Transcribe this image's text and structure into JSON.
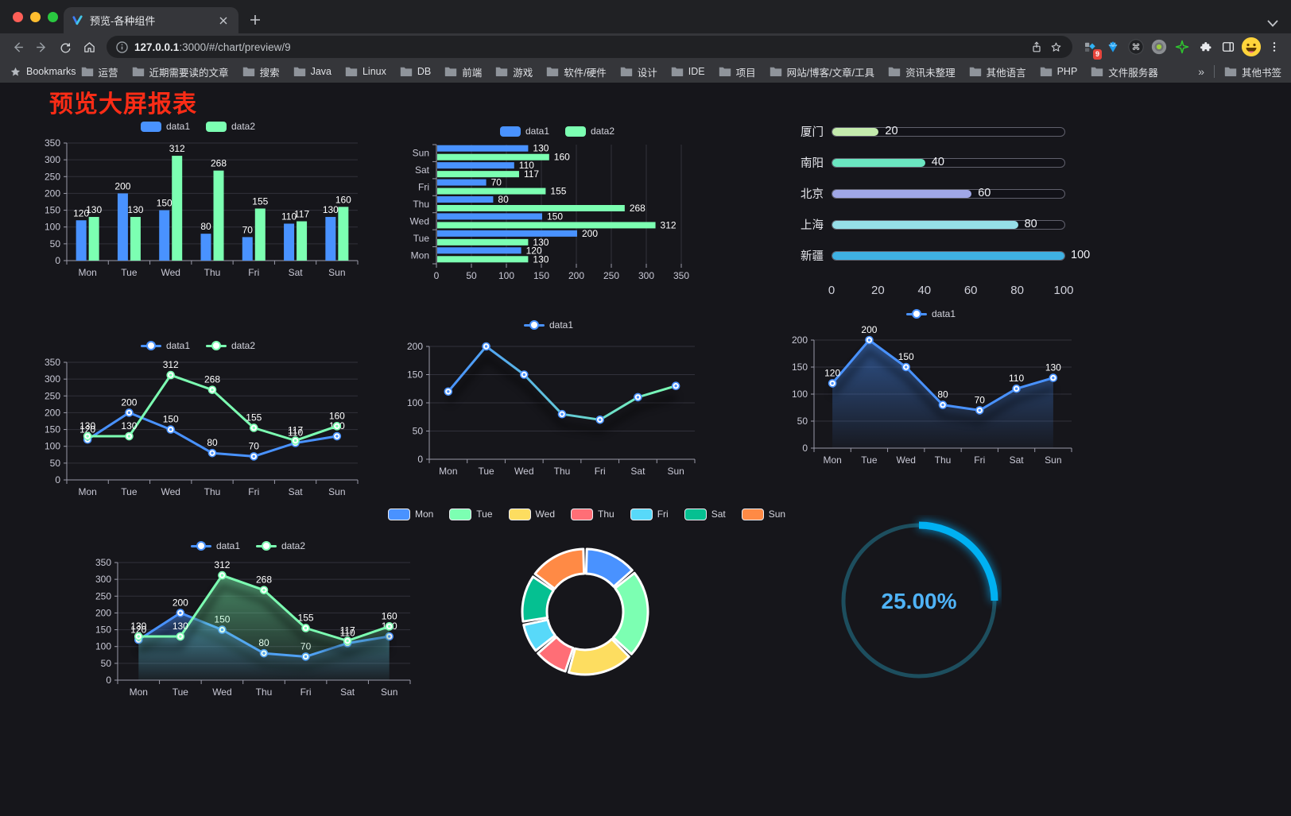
{
  "browser": {
    "tab_title": "预览-各种组件",
    "url_host": "127.0.0.1",
    "url_rest": ":3000/#/chart/preview/9",
    "bookmarks_label": "Bookmarks",
    "bookmark_folders": [
      "运营",
      "近期需要读的文章",
      "搜索",
      "Java",
      "Linux",
      "DB",
      "前端",
      "游戏",
      "软件/硬件",
      "设计",
      "IDE",
      "项目",
      "网站/博客/文章/工具",
      "资讯未整理",
      "其他语言",
      "PHP",
      "文件服务器"
    ],
    "bookmarks_overflow": "»",
    "other_bookmarks_label": "其他书签",
    "extensions_badge": "9"
  },
  "page": {
    "title": "预览大屏报表"
  },
  "chart_data": [
    {
      "id": "bar-vertical",
      "type": "bar",
      "categories": [
        "Mon",
        "Tue",
        "Wed",
        "Thu",
        "Fri",
        "Sat",
        "Sun"
      ],
      "series": [
        {
          "name": "data1",
          "color": "#4992ff",
          "values": [
            120,
            200,
            150,
            80,
            70,
            110,
            130
          ]
        },
        {
          "name": "data2",
          "color": "#7cffb2",
          "values": [
            130,
            130,
            312,
            268,
            155,
            117,
            160
          ]
        }
      ],
      "ylim": [
        0,
        350
      ],
      "ystep": 50,
      "legend_position": "top",
      "grid": true
    },
    {
      "id": "bar-horizontal",
      "type": "bar",
      "orientation": "horizontal",
      "categories": [
        "Mon",
        "Tue",
        "Wed",
        "Thu",
        "Fri",
        "Sat",
        "Sun"
      ],
      "series": [
        {
          "name": "data1",
          "color": "#4992ff",
          "values": [
            120,
            200,
            150,
            80,
            70,
            110,
            130
          ]
        },
        {
          "name": "data2",
          "color": "#7cffb2",
          "values": [
            130,
            130,
            312,
            268,
            155,
            117,
            160
          ]
        }
      ],
      "xlim": [
        0,
        350
      ],
      "xstep": 50,
      "legend_position": "top"
    },
    {
      "id": "progress-bars",
      "type": "bar",
      "orientation": "horizontal-progress",
      "rows": [
        {
          "label": "厦门",
          "value": 20,
          "color": "#c4ebad"
        },
        {
          "label": "南阳",
          "value": 40,
          "color": "#6be6c1"
        },
        {
          "label": "北京",
          "value": 60,
          "color": "#a0a7e6"
        },
        {
          "label": "上海",
          "value": 80,
          "color": "#96dee8"
        },
        {
          "label": "新疆",
          "value": 100,
          "color": "#3fb1e3"
        }
      ],
      "xlim": [
        0,
        100
      ],
      "xticks": [
        0,
        20,
        40,
        60,
        80,
        100
      ]
    },
    {
      "id": "line-two-series",
      "type": "line",
      "categories": [
        "Mon",
        "Tue",
        "Wed",
        "Thu",
        "Fri",
        "Sat",
        "Sun"
      ],
      "series": [
        {
          "name": "data1",
          "color": "#4992ff",
          "values": [
            120,
            200,
            150,
            80,
            70,
            110,
            130
          ]
        },
        {
          "name": "data2",
          "color": "#7cffb2",
          "values": [
            130,
            130,
            312,
            268,
            155,
            117,
            160
          ]
        }
      ],
      "ylim": [
        0,
        350
      ],
      "ystep": 50,
      "show_labels": true,
      "legend_position": "top"
    },
    {
      "id": "line-gradient",
      "type": "line",
      "categories": [
        "Mon",
        "Tue",
        "Wed",
        "Thu",
        "Fri",
        "Sat",
        "Sun"
      ],
      "series": [
        {
          "name": "data1",
          "color": "#4992ff",
          "gradient": [
            "#4992ff",
            "#7cffb2"
          ],
          "values": [
            120,
            200,
            150,
            80,
            70,
            110,
            130
          ]
        }
      ],
      "ylim": [
        0,
        200
      ],
      "ystep": 50,
      "show_labels": false,
      "shadow": true,
      "legend_position": "top"
    },
    {
      "id": "line-area",
      "type": "area",
      "categories": [
        "Mon",
        "Tue",
        "Wed",
        "Thu",
        "Fri",
        "Sat",
        "Sun"
      ],
      "series": [
        {
          "name": "data1",
          "color": "#4992ff",
          "values": [
            120,
            200,
            150,
            80,
            70,
            110,
            130
          ]
        }
      ],
      "ylim": [
        0,
        200
      ],
      "ystep": 50,
      "area": true,
      "show_labels": true,
      "shadow": true,
      "legend_position": "top"
    },
    {
      "id": "area-two-series",
      "type": "area",
      "categories": [
        "Mon",
        "Tue",
        "Wed",
        "Thu",
        "Fri",
        "Sat",
        "Sun"
      ],
      "series": [
        {
          "name": "data1",
          "color": "#4992ff",
          "values": [
            120,
            200,
            150,
            80,
            70,
            110,
            130
          ]
        },
        {
          "name": "data2",
          "color": "#7cffb2",
          "values": [
            130,
            130,
            312,
            268,
            155,
            117,
            160
          ]
        }
      ],
      "ylim": [
        0,
        350
      ],
      "ystep": 50,
      "area": true,
      "show_labels": true,
      "shadow": true,
      "legend_position": "top"
    },
    {
      "id": "donut",
      "type": "pie",
      "items": [
        {
          "name": "Mon",
          "value": 120,
          "color": "#4992ff"
        },
        {
          "name": "Tue",
          "value": 200,
          "color": "#7cffb2"
        },
        {
          "name": "Wed",
          "value": 150,
          "color": "#fddd60"
        },
        {
          "name": "Thu",
          "value": 80,
          "color": "#ff6e76"
        },
        {
          "name": "Fri",
          "value": 70,
          "color": "#58d9f9"
        },
        {
          "name": "Sat",
          "value": 110,
          "color": "#05c091"
        },
        {
          "name": "Sun",
          "value": 130,
          "color": "#ff8a45"
        }
      ],
      "legend_position": "top"
    },
    {
      "id": "gauge",
      "type": "gauge",
      "value": 25,
      "label": "25.00%",
      "color": "#00b1f2",
      "track_color": "#1d4e5e",
      "text_color": "#4fb3f7"
    }
  ]
}
